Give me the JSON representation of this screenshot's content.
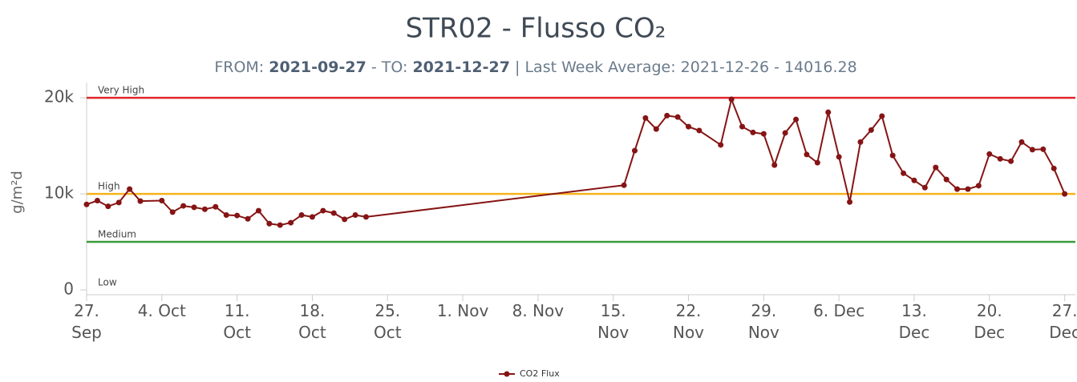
{
  "chart_data": {
    "type": "line",
    "title": "STR02 - Flusso CO₂",
    "subtitle": {
      "from_label": "FROM:",
      "from": "2021-09-27",
      "to_label": "- TO:",
      "to": "2021-12-27",
      "average": "| Last Week Average: 2021-12-26 - 14016.28"
    },
    "y_label": "g/m²d",
    "xlim": [
      "09-27",
      "12-28"
    ],
    "xticks": [
      {
        "value": "09-27",
        "label": "27.\nSep"
      },
      {
        "value": "10-04",
        "label": "4. Oct"
      },
      {
        "value": "10-11",
        "label": "11.\nOct"
      },
      {
        "value": "10-18",
        "label": "18.\nOct"
      },
      {
        "value": "10-25",
        "label": "25.\nOct"
      },
      {
        "value": "11-01",
        "label": "1. Nov"
      },
      {
        "value": "11-08",
        "label": "8. Nov"
      },
      {
        "value": "11-15",
        "label": "15.\nNov"
      },
      {
        "value": "11-22",
        "label": "22.\nNov"
      },
      {
        "value": "11-29",
        "label": "29.\nNov"
      },
      {
        "value": "12-06",
        "label": "6. Dec"
      },
      {
        "value": "12-13",
        "label": "13.\nDec"
      },
      {
        "value": "12-20",
        "label": "20.\nDec"
      },
      {
        "value": "12-27",
        "label": "27.\nDec"
      }
    ],
    "ylim": [
      -500,
      21600
    ],
    "yticks": [
      0,
      {
        "value": 10000,
        "label": "10k"
      },
      {
        "value": 20000,
        "label": "20k"
      }
    ],
    "thresholds": [
      {
        "value": 20000,
        "label": "Very High",
        "color": "#e0262b"
      },
      {
        "value": 10000,
        "label": "High",
        "color": "#f5b31b"
      },
      {
        "value": 5000,
        "label": "Medium",
        "color": "#3a9a3a"
      },
      {
        "value": 0,
        "label": "Low"
      }
    ],
    "x": [
      "09-27",
      "09-28",
      "09-29",
      "09-30",
      "10-01",
      "10-02",
      "10-04",
      "10-05",
      "10-06",
      "10-07",
      "10-08",
      "10-09",
      "10-10",
      "10-11",
      "10-12",
      "10-13",
      "10-14",
      "10-15",
      "10-16",
      "10-17",
      "10-18",
      "10-19",
      "10-20",
      "10-21",
      "10-22",
      "10-23",
      "11-16",
      "11-17",
      "11-18",
      "11-19",
      "11-20",
      "11-21",
      "11-22",
      "11-23",
      "11-25",
      "11-26",
      "11-27",
      "11-28",
      "11-29",
      "11-30",
      "12-01",
      "12-02",
      "12-03",
      "12-04",
      "12-05",
      "12-06",
      "12-07",
      "12-08",
      "12-09",
      "12-10",
      "12-11",
      "12-12",
      "12-13",
      "12-14",
      "12-15",
      "12-16",
      "12-17",
      "12-18",
      "12-19",
      "12-20",
      "12-21",
      "12-22",
      "12-23",
      "12-24",
      "12-25",
      "12-26",
      "12-27"
    ],
    "series": [
      {
        "name": "CO2 Flux",
        "color": "#861414",
        "values": [
          8900,
          9300,
          8700,
          9100,
          10500,
          9250,
          9300,
          8100,
          8750,
          8600,
          8400,
          8650,
          7800,
          7750,
          7400,
          8250,
          6900,
          6750,
          7000,
          7800,
          7600,
          8250,
          8000,
          7350,
          7800,
          7600,
          10900,
          14500,
          17900,
          16750,
          18150,
          18000,
          17000,
          16600,
          15100,
          19850,
          17000,
          16400,
          16250,
          13000,
          16350,
          17750,
          14100,
          13250,
          18500,
          13850,
          9150,
          15400,
          16650,
          18100,
          14000,
          12150,
          11400,
          10650,
          12750,
          11500,
          10500,
          10500,
          10850,
          14150,
          13650,
          13400,
          15400,
          14600,
          14650,
          12650,
          10000
        ]
      }
    ]
  }
}
